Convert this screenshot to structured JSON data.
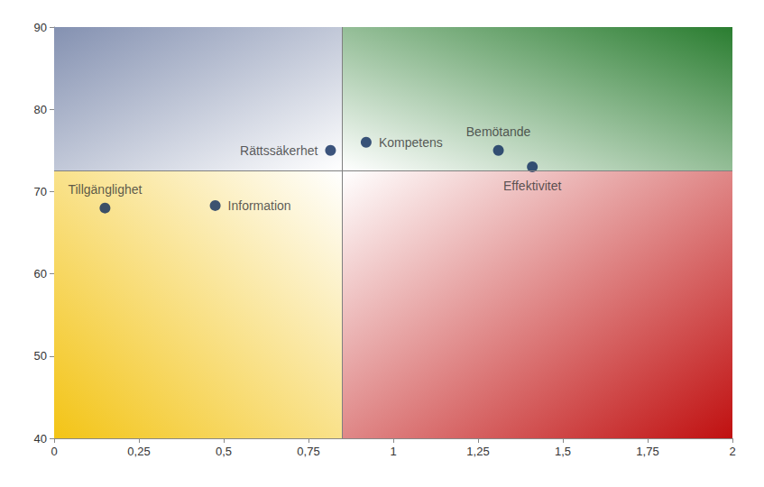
{
  "chart_data": {
    "type": "scatter",
    "points": [
      {
        "label": "Tillgänglighet",
        "x": 0.15,
        "y": 68
      },
      {
        "label": "Information",
        "x": 0.475,
        "y": 68.3
      },
      {
        "label": "Rättssäkerhet",
        "x": 0.815,
        "y": 75
      },
      {
        "label": "Kompetens",
        "x": 0.92,
        "y": 76
      },
      {
        "label": "Bemötande",
        "x": 1.31,
        "y": 75
      },
      {
        "label": "Effektivitet",
        "x": 1.41,
        "y": 73
      }
    ],
    "color": "#0d2a5c",
    "marker": "circle",
    "reference_lines": {
      "x": 0.85,
      "y": 72.5
    },
    "xlim": [
      0,
      2
    ],
    "xticks": [
      0,
      {
        "value": 0.25,
        "label": "0,25"
      },
      {
        "value": 0.5,
        "label": "0,5"
      },
      {
        "value": 0.75,
        "label": "0,75"
      },
      1,
      {
        "value": 1.25,
        "label": "1,25"
      },
      {
        "value": 1.5,
        "label": "1,5"
      },
      {
        "value": 1.75,
        "label": "1,75"
      },
      2
    ],
    "ylim": [
      40,
      90
    ],
    "yticks": [
      40,
      50,
      60,
      70,
      80,
      90
    ],
    "grid": false
  }
}
